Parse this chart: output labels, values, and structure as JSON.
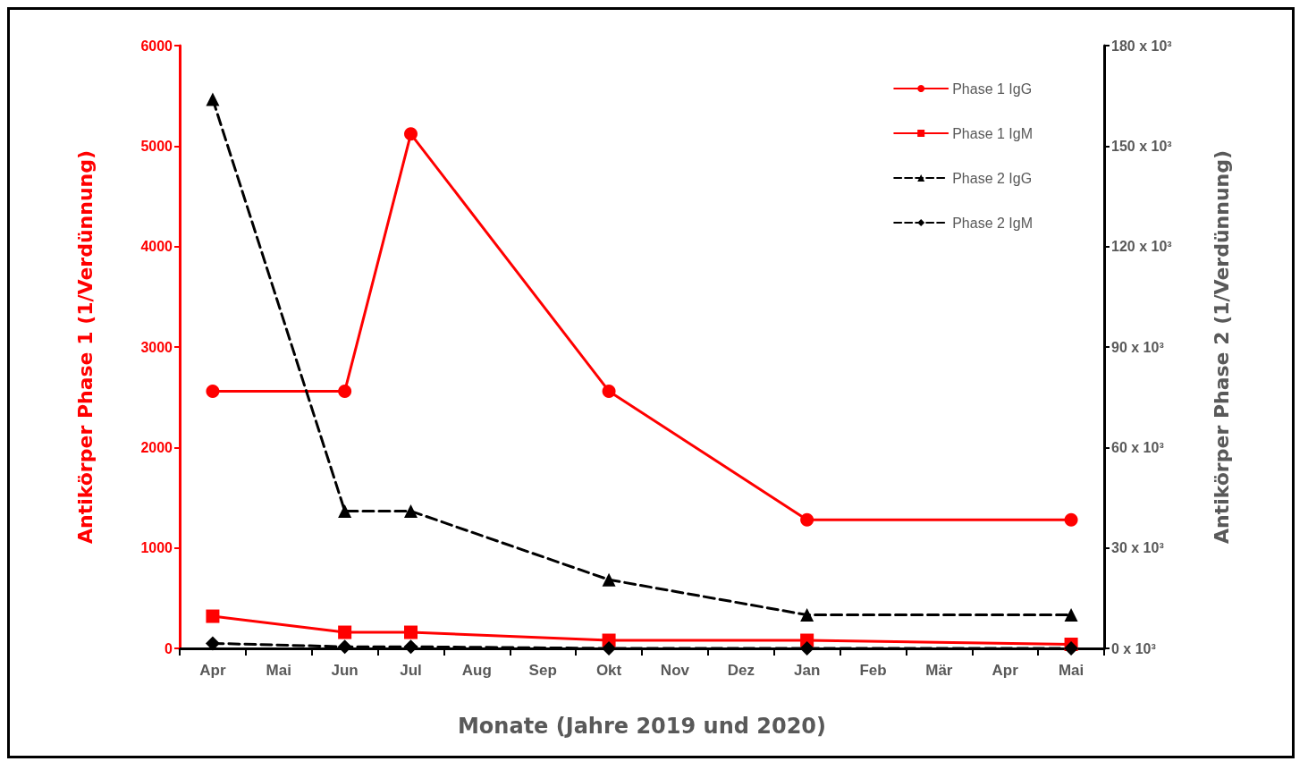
{
  "chart_data": {
    "type": "line",
    "xlabel": "Monate (Jahre 2019 und 2020)",
    "ylabel": "Antikörper Phase 1 (1/Verdünnung)",
    "y2label": "Antikörper Phase 2 (1/Verdünnung)",
    "categories": [
      "Apr",
      "Mai",
      "Jun",
      "Jul",
      "Aug",
      "Sep",
      "Okt",
      "Nov",
      "Dez",
      "Jan",
      "Feb",
      "Mär",
      "Apr",
      "Mai"
    ],
    "series": [
      {
        "name": "Phase 1 IgG",
        "color": "#ff0000",
        "marker": "circle",
        "line_style": "solid",
        "values": [
          2560,
          null,
          2560,
          5120,
          null,
          null,
          2560,
          null,
          null,
          1280,
          null,
          null,
          null,
          1280
        ]
      },
      {
        "name": "Phase 1 IgM",
        "color": "#ff0000",
        "marker": "square",
        "line_style": "solid",
        "values": [
          320,
          null,
          160,
          160,
          null,
          null,
          80,
          null,
          null,
          80,
          null,
          null,
          null,
          40
        ]
      },
      {
        "name": "Phase 2 IgG",
        "color": "#000000",
        "marker": "triangle",
        "line_style": "dashed",
        "axis": "y2",
        "values": [
          164000,
          null,
          41000,
          41000,
          null,
          null,
          20500,
          null,
          null,
          10000,
          null,
          null,
          null,
          10000
        ]
      },
      {
        "name": "Phase 2 IgM",
        "color": "#000000",
        "marker": "diamond",
        "line_style": "dashed",
        "axis": "y2",
        "values": [
          1500,
          null,
          500,
          500,
          null,
          null,
          0,
          null,
          null,
          0,
          null,
          null,
          null,
          0
        ]
      }
    ],
    "ylim": [
      0,
      6000
    ],
    "yticks": [
      0,
      1000,
      2000,
      3000,
      4000,
      5000,
      6000
    ],
    "y2lim": [
      0,
      180000
    ],
    "y2ticks": [
      {
        "value": 0,
        "label": "0 x 10³"
      },
      {
        "value": 30000,
        "label": "30 x 10³"
      },
      {
        "value": 60000,
        "label": "60 x 10³"
      },
      {
        "value": 90000,
        "label": "90 x 10³"
      },
      {
        "value": 120000,
        "label": "120 x 10³"
      },
      {
        "value": 150000,
        "label": "150 x 10³"
      },
      {
        "value": 180000,
        "label": "180 x 10³"
      }
    ],
    "grid": false,
    "legend": "top right"
  }
}
